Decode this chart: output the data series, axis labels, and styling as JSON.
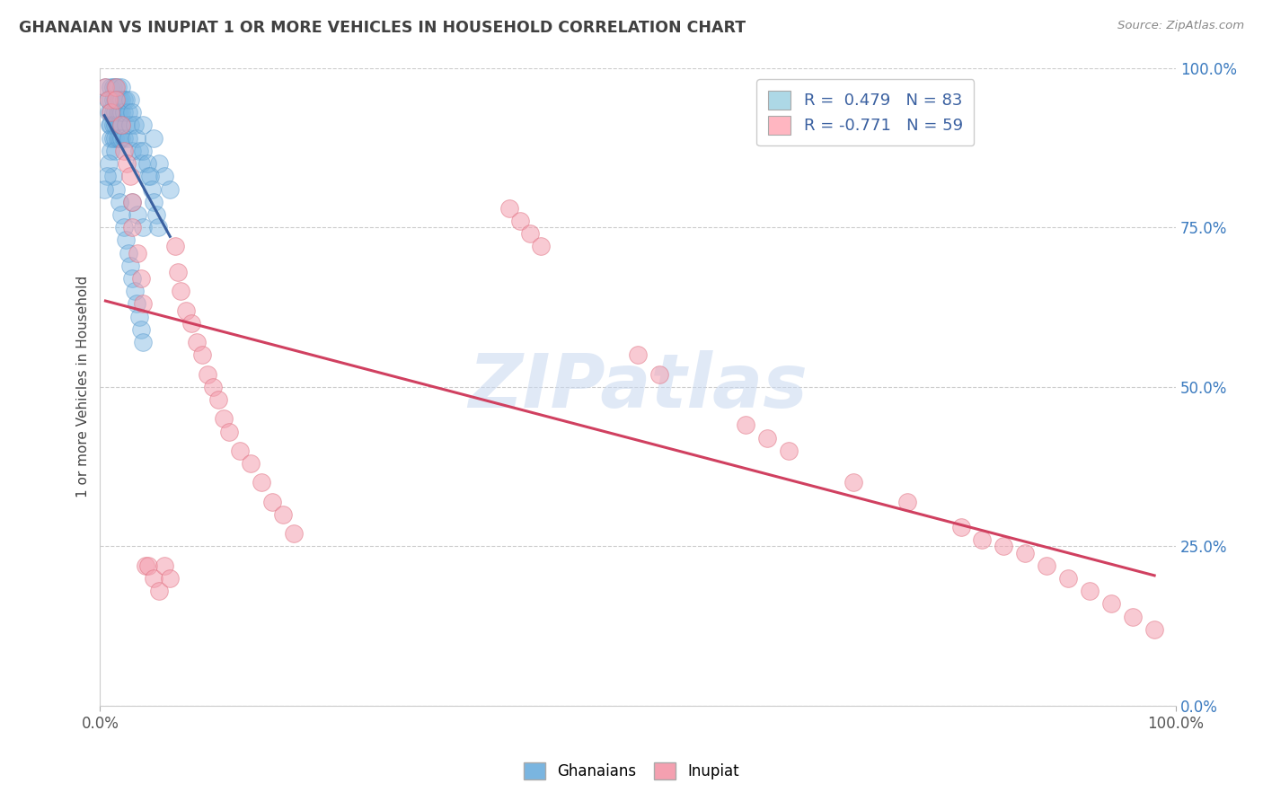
{
  "title": "GHANAIAN VS INUPIAT 1 OR MORE VEHICLES IN HOUSEHOLD CORRELATION CHART",
  "source": "Source: ZipAtlas.com",
  "ylabel": "1 or more Vehicles in Household",
  "xlim": [
    0.0,
    1.0
  ],
  "ylim": [
    0.0,
    1.0
  ],
  "ytick_vals": [
    0.0,
    0.25,
    0.5,
    0.75,
    1.0
  ],
  "ghanaian_R": "0.479",
  "ghanaian_N": "83",
  "inupiat_R": "-0.771",
  "inupiat_N": "59",
  "blue_scatter_color": "#7ab5e0",
  "blue_edge_color": "#4a90c8",
  "pink_scatter_color": "#f4a0b0",
  "pink_edge_color": "#e07080",
  "blue_line_color": "#3a60a0",
  "pink_line_color": "#d04060",
  "legend_blue_color": "#add8e6",
  "legend_pink_color": "#ffb6c1",
  "watermark": "ZIPatlas",
  "ghanaian_points": [
    [
      0.005,
      0.97
    ],
    [
      0.007,
      0.95
    ],
    [
      0.008,
      0.93
    ],
    [
      0.009,
      0.91
    ],
    [
      0.01,
      0.97
    ],
    [
      0.01,
      0.95
    ],
    [
      0.01,
      0.93
    ],
    [
      0.01,
      0.91
    ],
    [
      0.01,
      0.89
    ],
    [
      0.01,
      0.87
    ],
    [
      0.012,
      0.97
    ],
    [
      0.012,
      0.95
    ],
    [
      0.012,
      0.93
    ],
    [
      0.012,
      0.91
    ],
    [
      0.012,
      0.89
    ],
    [
      0.014,
      0.97
    ],
    [
      0.014,
      0.95
    ],
    [
      0.014,
      0.93
    ],
    [
      0.014,
      0.91
    ],
    [
      0.014,
      0.89
    ],
    [
      0.014,
      0.87
    ],
    [
      0.016,
      0.97
    ],
    [
      0.016,
      0.95
    ],
    [
      0.016,
      0.93
    ],
    [
      0.016,
      0.91
    ],
    [
      0.016,
      0.89
    ],
    [
      0.018,
      0.95
    ],
    [
      0.018,
      0.93
    ],
    [
      0.018,
      0.91
    ],
    [
      0.018,
      0.89
    ],
    [
      0.02,
      0.97
    ],
    [
      0.02,
      0.95
    ],
    [
      0.02,
      0.93
    ],
    [
      0.02,
      0.91
    ],
    [
      0.02,
      0.89
    ],
    [
      0.022,
      0.95
    ],
    [
      0.022,
      0.93
    ],
    [
      0.022,
      0.89
    ],
    [
      0.024,
      0.95
    ],
    [
      0.024,
      0.91
    ],
    [
      0.026,
      0.93
    ],
    [
      0.026,
      0.89
    ],
    [
      0.028,
      0.95
    ],
    [
      0.028,
      0.91
    ],
    [
      0.03,
      0.93
    ],
    [
      0.03,
      0.87
    ],
    [
      0.032,
      0.91
    ],
    [
      0.034,
      0.89
    ],
    [
      0.036,
      0.87
    ],
    [
      0.038,
      0.85
    ],
    [
      0.04,
      0.91
    ],
    [
      0.04,
      0.87
    ],
    [
      0.045,
      0.83
    ],
    [
      0.05,
      0.89
    ],
    [
      0.055,
      0.85
    ],
    [
      0.06,
      0.83
    ],
    [
      0.065,
      0.81
    ],
    [
      0.03,
      0.79
    ],
    [
      0.035,
      0.77
    ],
    [
      0.04,
      0.75
    ],
    [
      0.012,
      0.83
    ],
    [
      0.015,
      0.81
    ],
    [
      0.018,
      0.79
    ],
    [
      0.02,
      0.77
    ],
    [
      0.022,
      0.75
    ],
    [
      0.024,
      0.73
    ],
    [
      0.026,
      0.71
    ],
    [
      0.028,
      0.69
    ],
    [
      0.03,
      0.67
    ],
    [
      0.032,
      0.65
    ],
    [
      0.034,
      0.63
    ],
    [
      0.036,
      0.61
    ],
    [
      0.038,
      0.59
    ],
    [
      0.04,
      0.57
    ],
    [
      0.008,
      0.85
    ],
    [
      0.006,
      0.83
    ],
    [
      0.004,
      0.81
    ],
    [
      0.044,
      0.85
    ],
    [
      0.046,
      0.83
    ],
    [
      0.048,
      0.81
    ],
    [
      0.05,
      0.79
    ],
    [
      0.052,
      0.77
    ],
    [
      0.054,
      0.75
    ]
  ],
  "inupiat_points": [
    [
      0.005,
      0.97
    ],
    [
      0.008,
      0.95
    ],
    [
      0.01,
      0.93
    ],
    [
      0.015,
      0.97
    ],
    [
      0.015,
      0.95
    ],
    [
      0.02,
      0.91
    ],
    [
      0.022,
      0.87
    ],
    [
      0.025,
      0.85
    ],
    [
      0.028,
      0.83
    ],
    [
      0.03,
      0.79
    ],
    [
      0.03,
      0.75
    ],
    [
      0.035,
      0.71
    ],
    [
      0.038,
      0.67
    ],
    [
      0.04,
      0.63
    ],
    [
      0.042,
      0.22
    ],
    [
      0.045,
      0.22
    ],
    [
      0.05,
      0.2
    ],
    [
      0.055,
      0.18
    ],
    [
      0.06,
      0.22
    ],
    [
      0.065,
      0.2
    ],
    [
      0.07,
      0.72
    ],
    [
      0.072,
      0.68
    ],
    [
      0.075,
      0.65
    ],
    [
      0.08,
      0.62
    ],
    [
      0.085,
      0.6
    ],
    [
      0.09,
      0.57
    ],
    [
      0.095,
      0.55
    ],
    [
      0.1,
      0.52
    ],
    [
      0.105,
      0.5
    ],
    [
      0.11,
      0.48
    ],
    [
      0.115,
      0.45
    ],
    [
      0.12,
      0.43
    ],
    [
      0.13,
      0.4
    ],
    [
      0.14,
      0.38
    ],
    [
      0.15,
      0.35
    ],
    [
      0.16,
      0.32
    ],
    [
      0.17,
      0.3
    ],
    [
      0.18,
      0.27
    ],
    [
      0.38,
      0.78
    ],
    [
      0.39,
      0.76
    ],
    [
      0.4,
      0.74
    ],
    [
      0.41,
      0.72
    ],
    [
      0.5,
      0.55
    ],
    [
      0.52,
      0.52
    ],
    [
      0.6,
      0.44
    ],
    [
      0.62,
      0.42
    ],
    [
      0.64,
      0.4
    ],
    [
      0.7,
      0.35
    ],
    [
      0.75,
      0.32
    ],
    [
      0.8,
      0.28
    ],
    [
      0.82,
      0.26
    ],
    [
      0.84,
      0.25
    ],
    [
      0.86,
      0.24
    ],
    [
      0.88,
      0.22
    ],
    [
      0.9,
      0.2
    ],
    [
      0.92,
      0.18
    ],
    [
      0.94,
      0.16
    ],
    [
      0.96,
      0.14
    ],
    [
      0.98,
      0.12
    ]
  ]
}
